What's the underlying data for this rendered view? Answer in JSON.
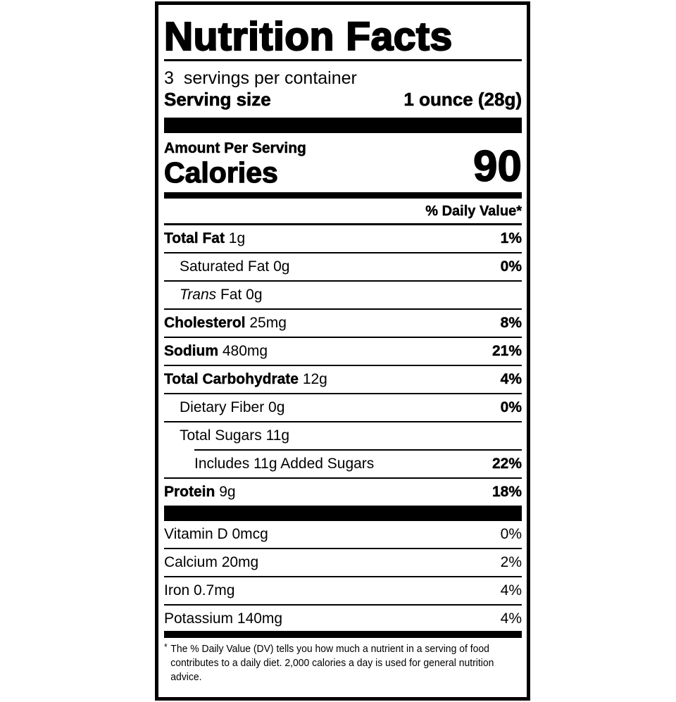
{
  "title": "Nutrition Facts",
  "servings": {
    "count": "3",
    "label": "servings per container"
  },
  "serving_size": {
    "label": "Serving size",
    "value": "1 ounce (28g)"
  },
  "amount_per_serving": "Amount Per Serving",
  "calories": {
    "label": "Calories",
    "value": "90"
  },
  "daily_value_header": "% Daily Value*",
  "nutrients": [
    {
      "name": "Total Fat",
      "amount": "1g",
      "dv": "1%"
    },
    {
      "name": "Saturated Fat",
      "amount": "0g",
      "dv": "0%"
    },
    {
      "name": "Trans",
      "name_rest": "Fat",
      "amount": "0g",
      "dv": ""
    },
    {
      "name": "Cholesterol",
      "amount": "25mg",
      "dv": "8%"
    },
    {
      "name": "Sodium",
      "amount": "480mg",
      "dv": "21%"
    },
    {
      "name": "Total Carbohydrate",
      "amount": "12g",
      "dv": "4%"
    },
    {
      "name": "Dietary Fiber",
      "amount": "0g",
      "dv": "0%"
    },
    {
      "name": "Total Sugars",
      "amount": "11g",
      "dv": ""
    },
    {
      "name": "Includes 11g Added Sugars",
      "amount": "",
      "dv": "22%"
    },
    {
      "name": "Protein",
      "amount": "9g",
      "dv": "18%"
    }
  ],
  "vitamins": [
    {
      "name": "Vitamin D",
      "amount": "0mcg",
      "dv": "0%"
    },
    {
      "name": "Calcium",
      "amount": "20mg",
      "dv": "2%"
    },
    {
      "name": "Iron",
      "amount": "0.7mg",
      "dv": "4%"
    },
    {
      "name": "Potassium",
      "amount": "140mg",
      "dv": "4%"
    }
  ],
  "footnote": {
    "mark": "*",
    "text": "The % Daily Value (DV) tells you how much a nutrient in a serving of food contributes to a daily diet. 2,000 calories a day is used for general nutrition advice."
  }
}
